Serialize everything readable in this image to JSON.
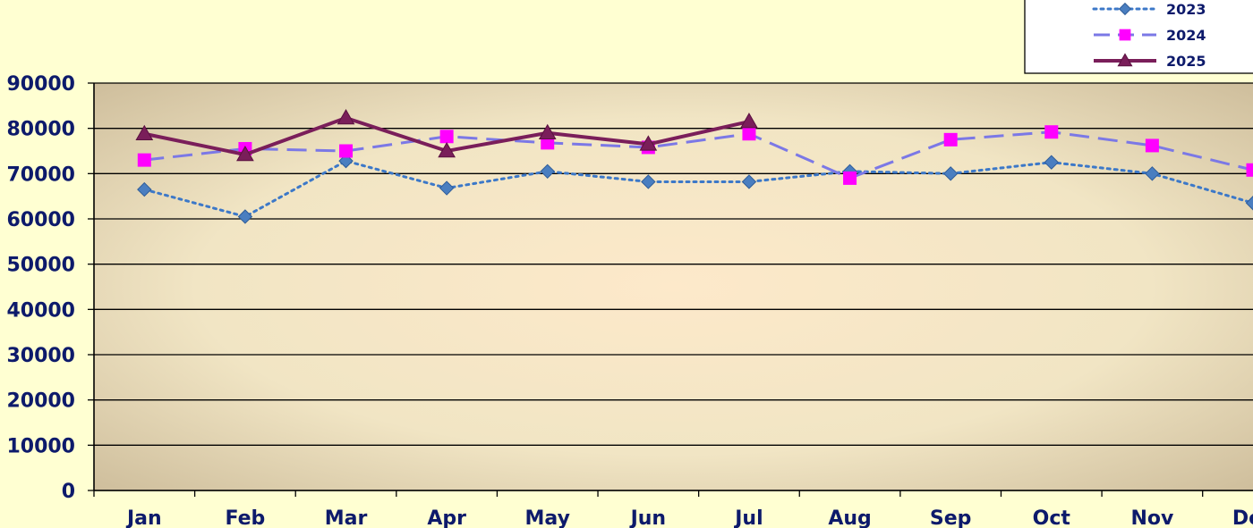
{
  "chart_data": {
    "type": "line",
    "title": "",
    "xlabel": "",
    "ylabel": "",
    "categories": [
      "Jan",
      "Feb",
      "Mar",
      "Apr",
      "May",
      "Jun",
      "Jul",
      "Aug",
      "Sep",
      "Oct",
      "Nov",
      "Dec"
    ],
    "ylim": [
      0,
      90000
    ],
    "yticks": [
      0,
      10000,
      20000,
      30000,
      40000,
      50000,
      60000,
      70000,
      80000,
      90000
    ],
    "grid": true,
    "legend_position": "top-right",
    "series": [
      {
        "name": "2023",
        "marker": "diamond",
        "line_style": "dotted",
        "color": "#3C78C8",
        "marker_color": "#4A7EC0",
        "values": [
          66500,
          60500,
          72800,
          66800,
          70500,
          68200,
          68200,
          70500,
          70000,
          72500,
          70000,
          63500
        ]
      },
      {
        "name": "2024",
        "marker": "square",
        "line_style": "dashed",
        "color": "#7B78E6",
        "marker_color": "#FF00FF",
        "values": [
          73000,
          75500,
          75000,
          78200,
          76800,
          75800,
          78800,
          69000,
          77500,
          79200,
          76200,
          70800
        ]
      },
      {
        "name": "2025",
        "marker": "triangle",
        "line_style": "solid",
        "color": "#7A1E5A",
        "marker_color": "#7A1E5A",
        "values": [
          78800,
          74200,
          82300,
          75000,
          79000,
          76500,
          81500,
          null,
          null,
          null,
          null,
          null
        ]
      }
    ]
  },
  "colors": {
    "page_background": "#FFFFD2",
    "plot_edge": "#C9B896",
    "plot_center": "#FDE9CA",
    "gridline": "#000000",
    "axis_text": "#0D1A6B"
  }
}
